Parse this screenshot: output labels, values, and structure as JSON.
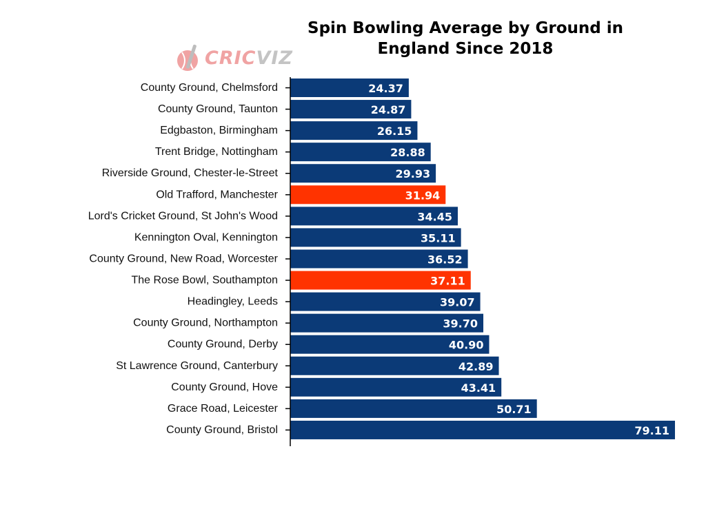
{
  "title_lines": [
    "Spin Bowling Average by Ground in",
    "England Since 2018"
  ],
  "logo": {
    "text_a": "CRIC",
    "text_b": "VIZ",
    "icon": "cricket-ball-bat-icon"
  },
  "colors": {
    "default_bar": "#0b3a77",
    "highlight_bar": "#ff3300"
  },
  "chart_data": {
    "type": "bar",
    "orientation": "horizontal",
    "title": "Spin Bowling Average by Ground in England Since 2018",
    "xlabel": "",
    "ylabel": "",
    "xlim": [
      0,
      80
    ],
    "grid": false,
    "categories": [
      "County Ground, Chelmsford",
      "County Ground, Taunton",
      "Edgbaston, Birmingham",
      "Trent Bridge, Nottingham",
      "Riverside Ground, Chester-le-Street",
      "Old Trafford, Manchester",
      "Lord's Cricket Ground, St John's Wood",
      "Kennington Oval, Kennington",
      "County Ground, New Road, Worcester",
      "The Rose Bowl, Southampton",
      "Headingley, Leeds",
      "County Ground, Northampton",
      "County Ground, Derby",
      "St Lawrence Ground, Canterbury",
      "County Ground, Hove",
      "Grace Road, Leicester",
      "County Ground, Bristol"
    ],
    "values": [
      24.37,
      24.87,
      26.15,
      28.88,
      29.93,
      31.94,
      34.45,
      35.11,
      36.52,
      37.11,
      39.07,
      39.7,
      40.9,
      42.89,
      43.41,
      50.71,
      79.11
    ],
    "value_labels": [
      "24.37",
      "24.87",
      "26.15",
      "28.88",
      "29.93",
      "31.94",
      "34.45",
      "35.11",
      "36.52",
      "37.11",
      "39.07",
      "39.70",
      "40.90",
      "42.89",
      "43.41",
      "50.71",
      "79.11"
    ],
    "highlighted": [
      "Old Trafford, Manchester",
      "The Rose Bowl, Southampton"
    ]
  }
}
